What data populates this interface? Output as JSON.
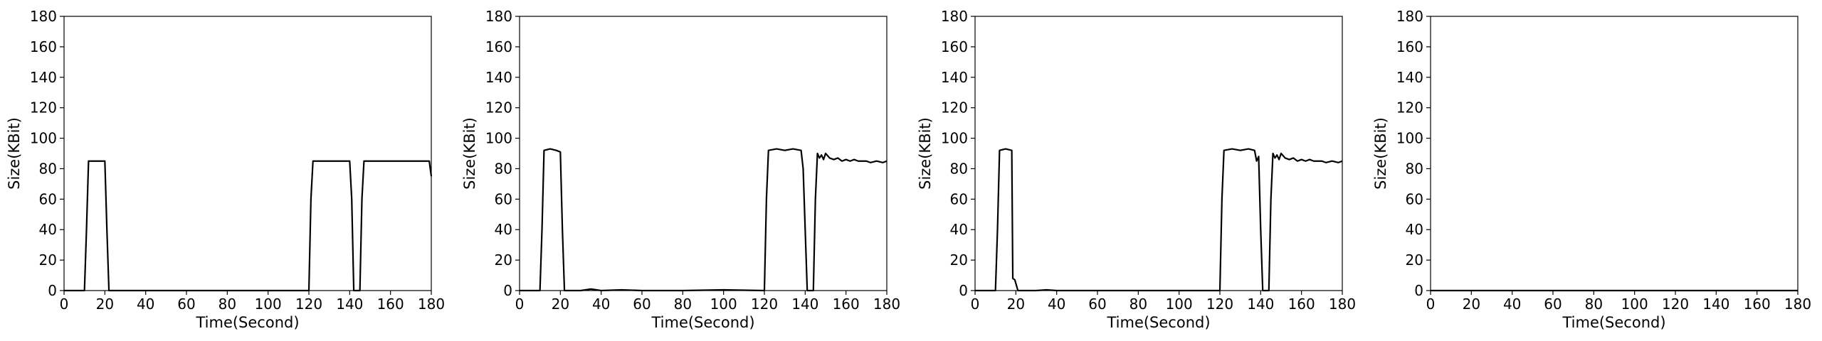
{
  "chart_data": [
    {
      "type": "line",
      "xlabel": "Time(Second)",
      "ylabel": "Size(KBit)",
      "xlim": [
        0,
        180
      ],
      "ylim": [
        0,
        180
      ],
      "xticks": [
        0,
        20,
        40,
        60,
        80,
        100,
        120,
        140,
        160,
        180
      ],
      "yticks": [
        0,
        20,
        40,
        60,
        80,
        100,
        120,
        140,
        160,
        180
      ],
      "grid": false,
      "series": [
        {
          "color": "#000000",
          "points": [
            [
              0,
              0
            ],
            [
              10,
              0
            ],
            [
              11,
              40
            ],
            [
              12,
              85
            ],
            [
              20,
              85
            ],
            [
              21,
              40
            ],
            [
              22,
              0
            ],
            [
              120,
              0
            ],
            [
              121,
              60
            ],
            [
              122,
              85
            ],
            [
              140,
              85
            ],
            [
              141,
              60
            ],
            [
              142,
              0
            ],
            [
              145,
              0
            ],
            [
              146,
              60
            ],
            [
              147,
              85
            ],
            [
              179,
              85
            ],
            [
              180,
              75
            ]
          ]
        }
      ]
    },
    {
      "type": "line",
      "xlabel": "Time(Second)",
      "ylabel": "Size(KBit)",
      "xlim": [
        0,
        180
      ],
      "ylim": [
        0,
        180
      ],
      "xticks": [
        0,
        20,
        40,
        60,
        80,
        100,
        120,
        140,
        160,
        180
      ],
      "yticks": [
        0,
        20,
        40,
        60,
        80,
        100,
        120,
        140,
        160,
        180
      ],
      "grid": false,
      "series": [
        {
          "color": "#000000",
          "points": [
            [
              0,
              0
            ],
            [
              10,
              0
            ],
            [
              11,
              40
            ],
            [
              12,
              92
            ],
            [
              15,
              93
            ],
            [
              18,
              92
            ],
            [
              20,
              91
            ],
            [
              21,
              40
            ],
            [
              22,
              0
            ],
            [
              30,
              0
            ],
            [
              35,
              1
            ],
            [
              40,
              0
            ],
            [
              50,
              0.5
            ],
            [
              60,
              0
            ],
            [
              80,
              0
            ],
            [
              100,
              0.5
            ],
            [
              120,
              0
            ],
            [
              121,
              60
            ],
            [
              122,
              92
            ],
            [
              126,
              93
            ],
            [
              130,
              92
            ],
            [
              134,
              93
            ],
            [
              138,
              92
            ],
            [
              139,
              80
            ],
            [
              140,
              40
            ],
            [
              141,
              0
            ],
            [
              144,
              0
            ],
            [
              145,
              60
            ],
            [
              146,
              90
            ],
            [
              147,
              87
            ],
            [
              148,
              89
            ],
            [
              149,
              86
            ],
            [
              150,
              90
            ],
            [
              152,
              87
            ],
            [
              154,
              86
            ],
            [
              156,
              87
            ],
            [
              158,
              85
            ],
            [
              160,
              86
            ],
            [
              162,
              85
            ],
            [
              164,
              86
            ],
            [
              166,
              85
            ],
            [
              170,
              85
            ],
            [
              172,
              84
            ],
            [
              175,
              85
            ],
            [
              178,
              84
            ],
            [
              180,
              85
            ]
          ]
        }
      ]
    },
    {
      "type": "line",
      "xlabel": "Time(Second)",
      "ylabel": "Size(KBit)",
      "xlim": [
        0,
        180
      ],
      "ylim": [
        0,
        180
      ],
      "xticks": [
        0,
        20,
        40,
        60,
        80,
        100,
        120,
        140,
        160,
        180
      ],
      "yticks": [
        0,
        20,
        40,
        60,
        80,
        100,
        120,
        140,
        160,
        180
      ],
      "grid": false,
      "series": [
        {
          "color": "#000000",
          "points": [
            [
              0,
              0
            ],
            [
              10,
              0
            ],
            [
              11,
              40
            ],
            [
              12,
              92
            ],
            [
              15,
              93
            ],
            [
              18,
              92
            ],
            [
              18.5,
              8
            ],
            [
              19.5,
              7
            ],
            [
              21,
              0
            ],
            [
              30,
              0
            ],
            [
              35,
              0.5
            ],
            [
              40,
              0
            ],
            [
              60,
              0
            ],
            [
              80,
              0
            ],
            [
              100,
              0
            ],
            [
              120,
              0
            ],
            [
              121,
              60
            ],
            [
              122,
              92
            ],
            [
              126,
              93
            ],
            [
              130,
              92
            ],
            [
              134,
              93
            ],
            [
              137,
              92
            ],
            [
              138,
              85
            ],
            [
              139,
              88
            ],
            [
              140,
              40
            ],
            [
              141,
              0
            ],
            [
              144,
              0
            ],
            [
              145,
              60
            ],
            [
              146,
              90
            ],
            [
              147,
              87
            ],
            [
              148,
              89
            ],
            [
              149,
              86
            ],
            [
              150,
              90
            ],
            [
              152,
              87
            ],
            [
              154,
              86
            ],
            [
              156,
              87
            ],
            [
              158,
              85
            ],
            [
              160,
              86
            ],
            [
              162,
              85
            ],
            [
              164,
              86
            ],
            [
              166,
              85
            ],
            [
              170,
              85
            ],
            [
              172,
              84
            ],
            [
              175,
              85
            ],
            [
              178,
              84
            ],
            [
              180,
              85
            ]
          ]
        }
      ]
    },
    {
      "type": "line",
      "xlabel": "Time(Second)",
      "ylabel": "Size(KBit)",
      "xlim": [
        0,
        180
      ],
      "ylim": [
        0,
        180
      ],
      "xticks": [
        0,
        20,
        40,
        60,
        80,
        100,
        120,
        140,
        160,
        180
      ],
      "yticks": [
        0,
        20,
        40,
        60,
        80,
        100,
        120,
        140,
        160,
        180
      ],
      "grid": false,
      "series": [
        {
          "color": "#000000",
          "points": [
            [
              0,
              0
            ],
            [
              180,
              0
            ]
          ]
        }
      ]
    }
  ]
}
